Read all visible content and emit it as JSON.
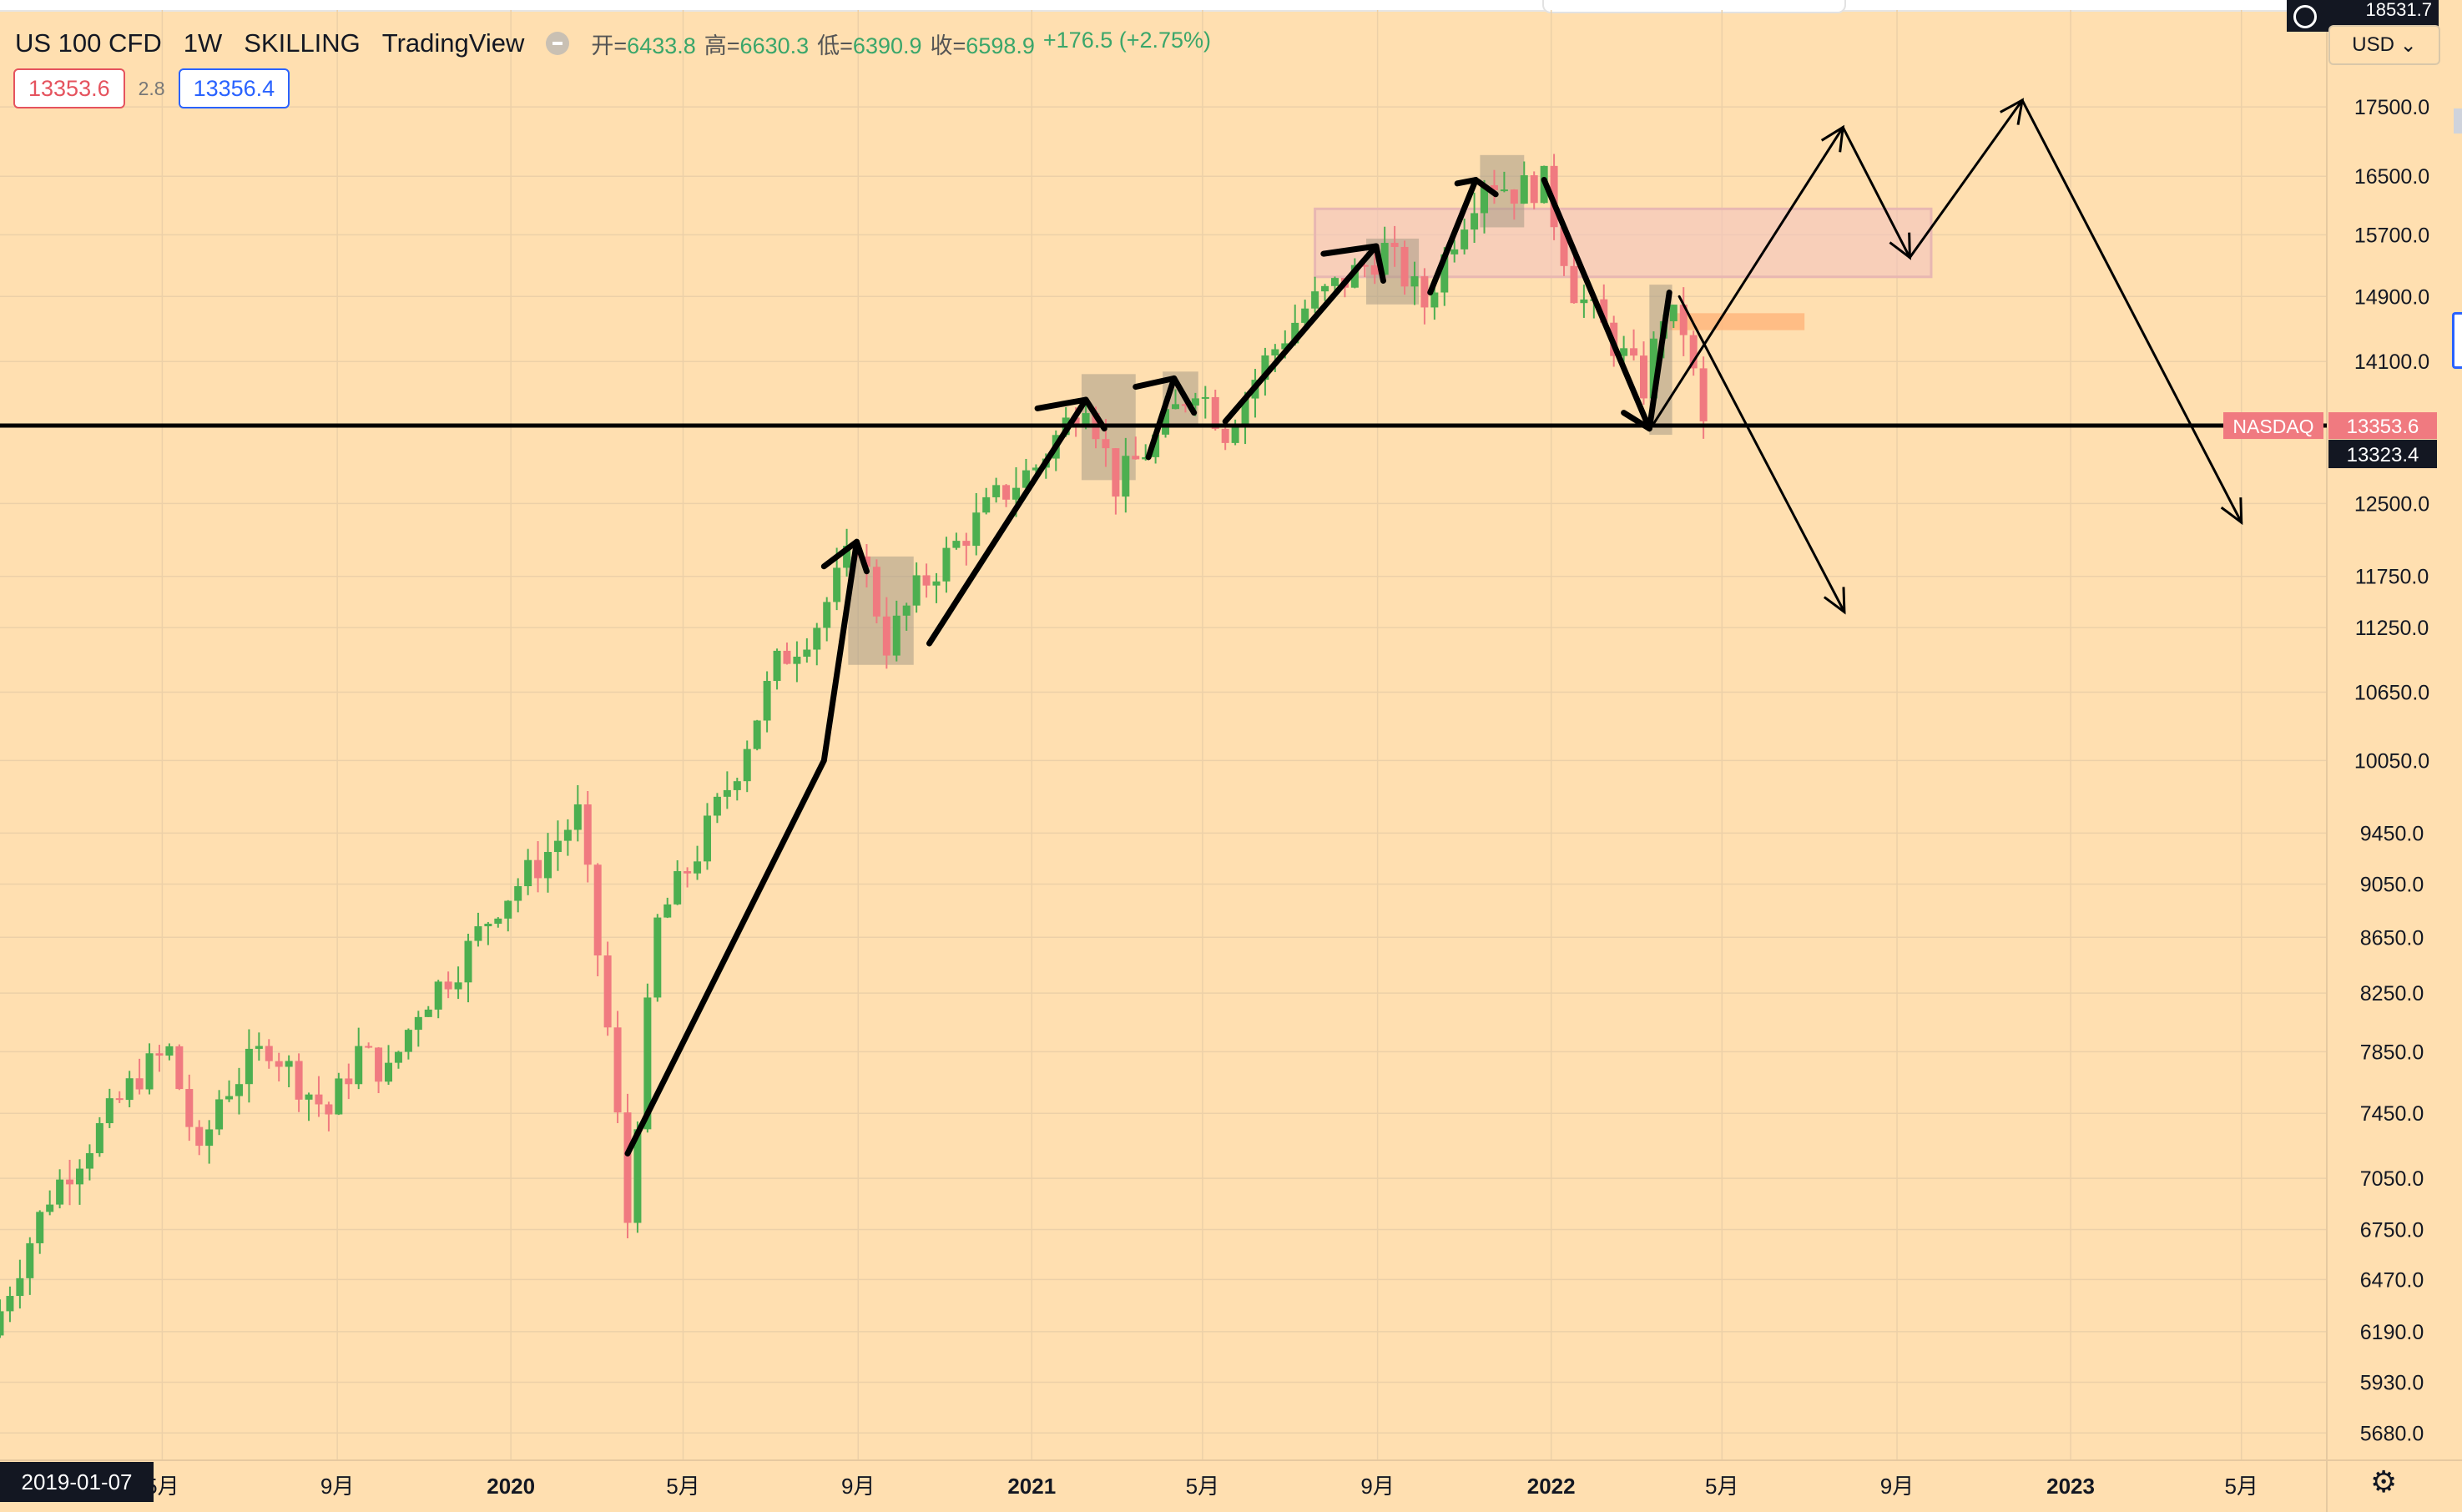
{
  "header": {
    "symbol": "US 100 CFD",
    "interval": "1W",
    "broker": "SKILLING",
    "platform": "TradingView",
    "ohlc": {
      "open_label": "开=",
      "open": "6433.8",
      "high_label": "高=",
      "high": "6630.3",
      "low_label": "低=",
      "low": "6390.9",
      "close_label": "收=",
      "close": "6598.9",
      "change": "+176.5 (+2.75%)"
    },
    "sell_price": "13353.6",
    "spread": "2.8",
    "buy_price": "13356.4",
    "currency": "USD",
    "top_badge": "18531.7"
  },
  "footer": {
    "cursor_date": "2019-01-07",
    "settings_icon": "gear-icon"
  },
  "chart_data": {
    "type": "candlestick",
    "x_start": "2019-01-07",
    "x_end": "2023-06-30",
    "x_ticks": [
      {
        "date": "2019-05-01",
        "label": "5月",
        "bold": false
      },
      {
        "date": "2019-09-01",
        "label": "9月",
        "bold": false
      },
      {
        "date": "2020-01-01",
        "label": "2020",
        "bold": true
      },
      {
        "date": "2020-05-01",
        "label": "5月",
        "bold": false
      },
      {
        "date": "2020-09-01",
        "label": "9月",
        "bold": false
      },
      {
        "date": "2021-01-01",
        "label": "2021",
        "bold": true
      },
      {
        "date": "2021-05-01",
        "label": "5月",
        "bold": false
      },
      {
        "date": "2021-09-01",
        "label": "9月",
        "bold": false
      },
      {
        "date": "2022-01-01",
        "label": "2022",
        "bold": true
      },
      {
        "date": "2022-05-01",
        "label": "5月",
        "bold": false
      },
      {
        "date": "2022-09-01",
        "label": "9月",
        "bold": false
      },
      {
        "date": "2023-01-01",
        "label": "2023",
        "bold": true
      },
      {
        "date": "2023-05-01",
        "label": "5月",
        "bold": false
      }
    ],
    "y_scale": "log",
    "y_ticks": [
      17500,
      16500,
      15700,
      14900,
      14100,
      12500,
      11750,
      11250,
      10650,
      10050,
      9450,
      9050,
      8650,
      8250,
      7850,
      7450,
      7050,
      6750,
      6470,
      6190,
      5930,
      5680
    ],
    "ylim": [
      5550,
      19000
    ],
    "grid": true,
    "colors": {
      "up": "#4caf50",
      "down": "#f07a80",
      "line": "#000000",
      "zone": "#f3c4c0",
      "box": "#a89a86",
      "orange": "#ffb47a"
    },
    "horizontal_line": {
      "value": 13353.6,
      "label": "NASDAQ",
      "price": "13353.6"
    },
    "last_price": "13323.4",
    "weekly_close_path": [
      [
        "2019-01-07",
        6300
      ],
      [
        "2019-02-11",
        6950
      ],
      [
        "2019-03-18",
        7350
      ],
      [
        "2019-04-15",
        7700
      ],
      [
        "2019-05-06",
        7850
      ],
      [
        "2019-05-27",
        7150
      ],
      [
        "2019-06-10",
        7550
      ],
      [
        "2019-07-15",
        7900
      ],
      [
        "2019-08-05",
        7650
      ],
      [
        "2019-08-26",
        7450
      ],
      [
        "2019-09-16",
        7850
      ],
      [
        "2019-10-07",
        7700
      ],
      [
        "2019-10-28",
        8150
      ],
      [
        "2019-11-25",
        8450
      ],
      [
        "2019-12-23",
        8900
      ],
      [
        "2020-01-20",
        9200
      ],
      [
        "2020-02-17",
        9600
      ],
      [
        "2020-03-09",
        8000
      ],
      [
        "2020-03-23",
        6800
      ],
      [
        "2020-04-13",
        8750
      ],
      [
        "2020-05-11",
        9300
      ],
      [
        "2020-06-08",
        10000
      ],
      [
        "2020-07-06",
        10900
      ],
      [
        "2020-08-03",
        11300
      ],
      [
        "2020-08-31",
        12100
      ],
      [
        "2020-09-21",
        11100
      ],
      [
        "2020-10-12",
        11600
      ],
      [
        "2020-11-02",
        11950
      ],
      [
        "2020-12-07",
        12550
      ],
      [
        "2021-01-04",
        12900
      ],
      [
        "2021-02-08",
        13700
      ],
      [
        "2021-03-01",
        12700
      ],
      [
        "2021-03-29",
        13200
      ],
      [
        "2021-04-26",
        13850
      ],
      [
        "2021-05-17",
        13300
      ],
      [
        "2021-06-14",
        14100
      ],
      [
        "2021-07-12",
        14750
      ],
      [
        "2021-08-16",
        15200
      ],
      [
        "2021-09-06",
        15500
      ],
      [
        "2021-10-04",
        14800
      ],
      [
        "2021-10-25",
        15700
      ],
      [
        "2021-11-15",
        16500
      ],
      [
        "2021-12-06",
        16300
      ],
      [
        "2021-12-27",
        16400
      ],
      [
        "2022-01-17",
        15000
      ],
      [
        "2022-02-07",
        14500
      ],
      [
        "2022-03-07",
        13800
      ],
      [
        "2022-03-21",
        14700
      ],
      [
        "2022-04-04",
        14500
      ],
      [
        "2022-04-18",
        13320
      ]
    ],
    "zones": [
      {
        "x1": "2021-07-19",
        "x2": "2022-09-25",
        "y1": 15150,
        "y2": 16050,
        "kind": "zone"
      },
      {
        "x1": "2022-03-25",
        "x2": "2022-06-28",
        "y1": 14480,
        "y2": 14690,
        "kind": "orange"
      },
      {
        "x1": "2020-08-25",
        "x2": "2020-10-10",
        "y1": 10900,
        "y2": 11950,
        "kind": "box"
      },
      {
        "x1": "2021-02-05",
        "x2": "2021-03-15",
        "y1": 12750,
        "y2": 13950,
        "kind": "box"
      },
      {
        "x1": "2021-04-03",
        "x2": "2021-04-28",
        "y1": 13350,
        "y2": 13980,
        "kind": "box"
      },
      {
        "x1": "2021-08-24",
        "x2": "2021-09-30",
        "y1": 14800,
        "y2": 15650,
        "kind": "box"
      },
      {
        "x1": "2021-11-12",
        "x2": "2021-12-13",
        "y1": 15800,
        "y2": 16800,
        "kind": "box"
      },
      {
        "x1": "2022-03-11",
        "x2": "2022-03-27",
        "y1": 13250,
        "y2": 15050,
        "kind": "box"
      }
    ],
    "bold_arrows": [
      [
        [
          "2020-03-23",
          7200
        ],
        [
          "2020-08-08",
          10050
        ],
        [
          "2020-08-31",
          12100
        ],
        [
          "2020-09-07",
          11800
        ]
      ],
      [
        [
          "2020-08-08",
          11850
        ],
        [
          "2020-08-31",
          12100
        ]
      ],
      [
        [
          "2020-10-21",
          11100
        ],
        [
          "2021-02-08",
          13650
        ],
        [
          "2021-02-21",
          13320
        ]
      ],
      [
        [
          "2021-01-05",
          13550
        ],
        [
          "2021-02-08",
          13650
        ]
      ],
      [
        [
          "2021-03-24",
          13000
        ],
        [
          "2021-04-11",
          13900
        ],
        [
          "2021-04-25",
          13500
        ]
      ],
      [
        [
          "2021-03-15",
          13800
        ],
        [
          "2021-04-11",
          13900
        ]
      ],
      [
        [
          "2021-05-17",
          13400
        ],
        [
          "2021-08-31",
          15550
        ],
        [
          "2021-09-05",
          15100
        ]
      ],
      [
        [
          "2021-07-25",
          15450
        ],
        [
          "2021-08-31",
          15550
        ]
      ],
      [
        [
          "2021-10-08",
          14950
        ],
        [
          "2021-11-09",
          16450
        ],
        [
          "2021-11-23",
          16250
        ]
      ],
      [
        [
          "2021-10-27",
          16400
        ],
        [
          "2021-11-09",
          16450
        ]
      ],
      [
        [
          "2021-12-27",
          16450
        ],
        [
          "2022-03-11",
          13320
        ],
        [
          "2022-03-25",
          14950
        ]
      ],
      [
        [
          "2022-02-21",
          13500
        ],
        [
          "2022-03-11",
          13320
        ]
      ]
    ],
    "thin_arrows": [
      [
        [
          "2022-03-11",
          13300
        ],
        [
          "2022-07-25",
          17200
        ]
      ],
      [
        [
          "2022-07-25",
          17200
        ],
        [
          "2022-09-10",
          15400
        ]
      ],
      [
        [
          "2022-09-10",
          15400
        ],
        [
          "2022-11-28",
          17600
        ]
      ],
      [
        [
          "2022-11-28",
          17600
        ],
        [
          "2023-05-01",
          12300
        ]
      ],
      [
        [
          "2022-04-01",
          14900
        ],
        [
          "2022-07-26",
          11400
        ]
      ]
    ]
  }
}
